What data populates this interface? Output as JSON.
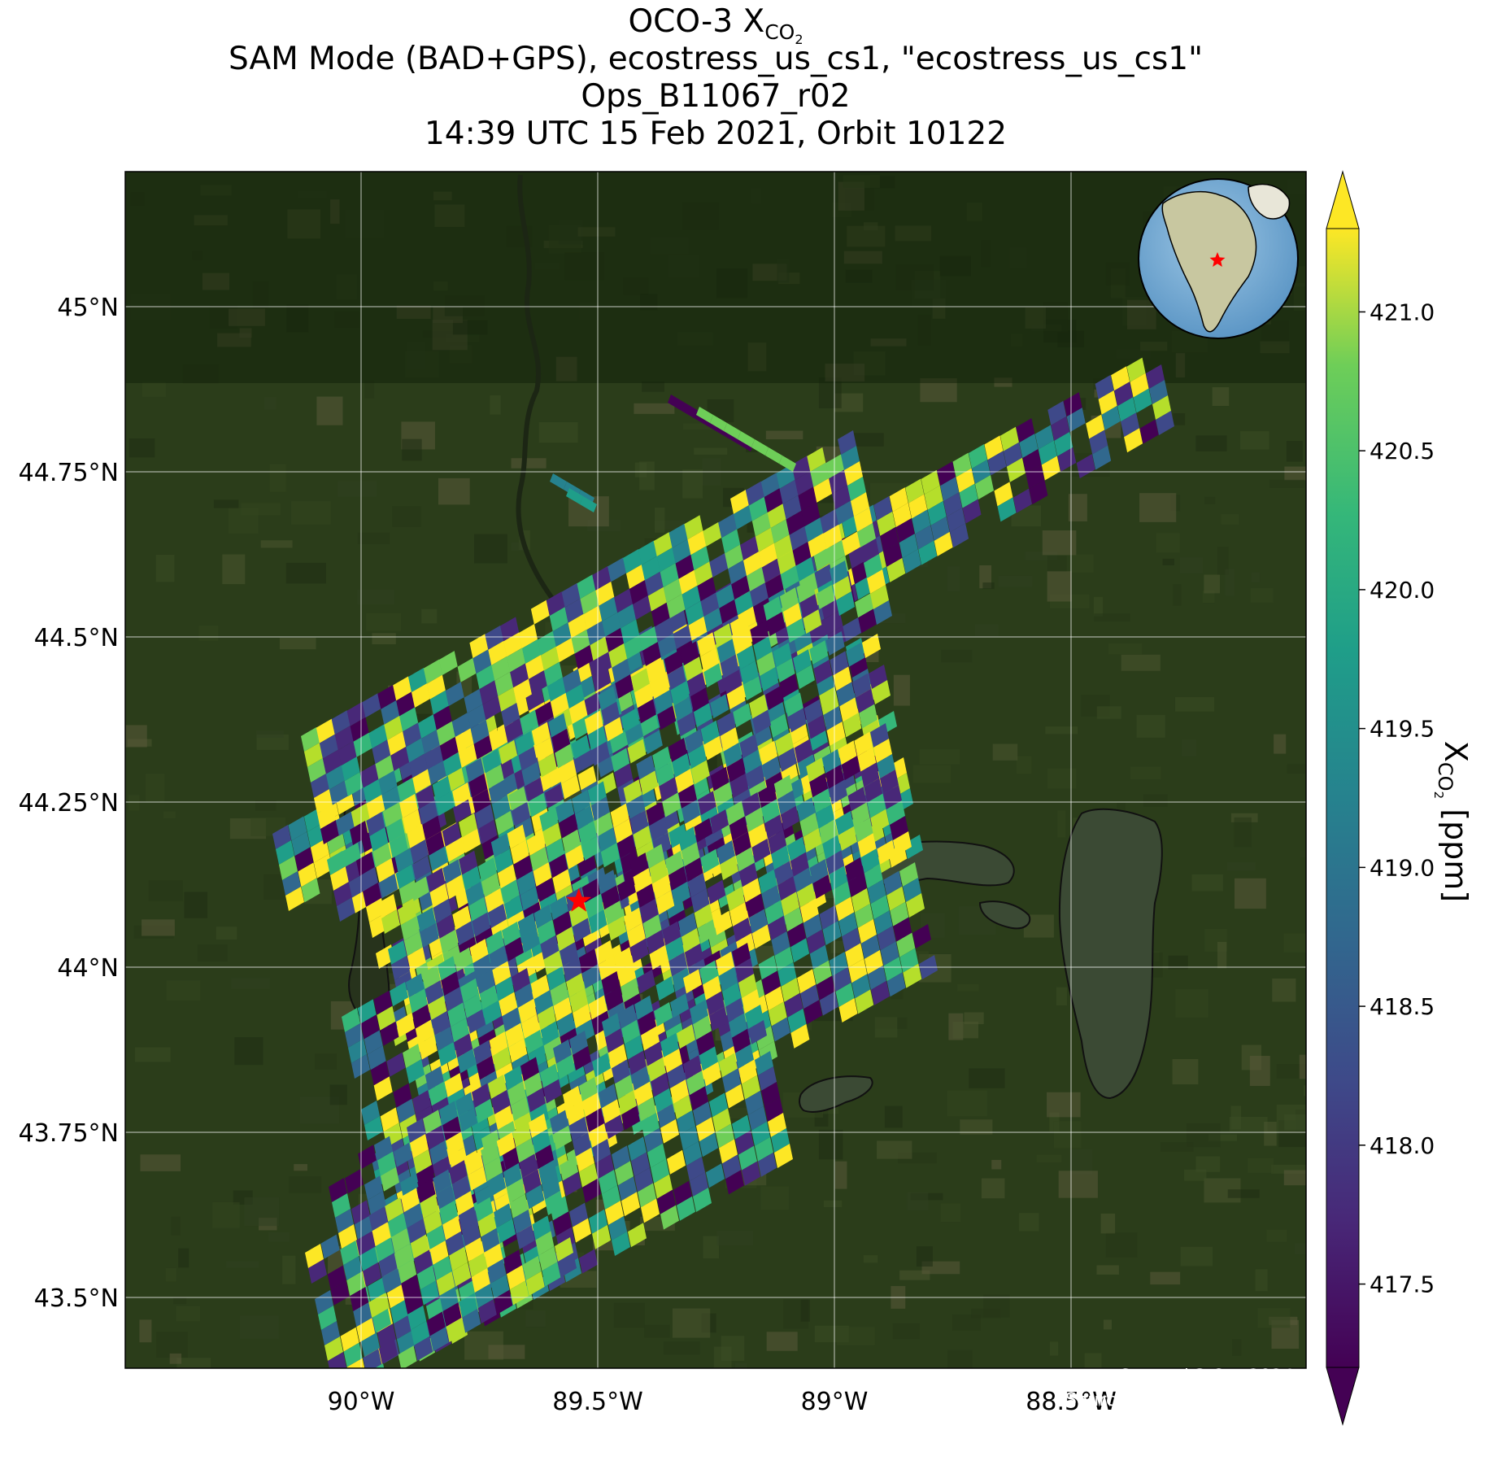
{
  "title": {
    "line1_prefix": "OCO-3 X",
    "line1_sub": "CO",
    "line1_subsub": "2",
    "line2": "SAM Mode (BAD+GPS), ecostress_us_cs1, \"ecostress_us_cs1\"",
    "line3": "Ops_B11067_r02",
    "line4": "14:39 UTC 15 Feb 2021, Orbit 10122"
  },
  "map": {
    "lon_range": [
      -90.5,
      -88.0
    ],
    "lat_range": [
      43.3,
      45.2
    ],
    "lon_ticks": [
      {
        "value": -90.0,
        "label": "90°W"
      },
      {
        "value": -89.5,
        "label": "89.5°W"
      },
      {
        "value": -89.0,
        "label": "89°W"
      },
      {
        "value": -88.5,
        "label": "88.5°W"
      }
    ],
    "lat_ticks": [
      {
        "value": 45.0,
        "label": "45°N"
      },
      {
        "value": 44.75,
        "label": "44.75°N"
      },
      {
        "value": 44.5,
        "label": "44.5°N"
      },
      {
        "value": 44.25,
        "label": "44.25°N"
      },
      {
        "value": 44.0,
        "label": "44°N"
      },
      {
        "value": 43.75,
        "label": "43.75°N"
      },
      {
        "value": 43.5,
        "label": "43.5°N"
      }
    ],
    "target_marker": {
      "lon": -89.54,
      "lat": 44.1,
      "symbol": "star",
      "color": "#ff0000"
    },
    "background": "satellite imagery",
    "gridlines": true
  },
  "colorbar": {
    "label_prefix": "X",
    "label_sub": "CO",
    "label_subsub": "2",
    "label_suffix": " [ppm]",
    "range": [
      417.2,
      421.3
    ],
    "extend": "both",
    "colormap": "viridis",
    "ticks": [
      "417.5",
      "418.0",
      "418.5",
      "419.0",
      "419.5",
      "420.0",
      "420.5",
      "421.0"
    ]
  },
  "credit": {
    "line1": "Created 3 Oct 2024",
    "line2": "Source: NASA/JPL-Caltech"
  },
  "inset": {
    "type": "globe",
    "marker_color": "#ff0000"
  }
}
